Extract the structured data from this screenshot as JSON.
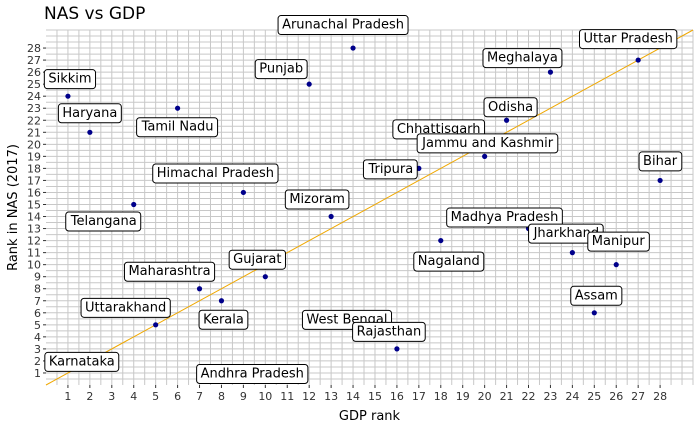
{
  "chart_data": {
    "type": "scatter",
    "title": "NAS vs GDP",
    "xlabel": "GDP rank",
    "ylabel": "Rank in NAS (2017)",
    "xlim": [
      0,
      29.5
    ],
    "ylim": [
      0,
      29.5
    ],
    "x_ticks": [
      "1",
      "2",
      "3",
      "4",
      "5",
      "6",
      "7",
      "8",
      "9",
      "10",
      "11",
      "12",
      "13",
      "14",
      "15",
      "16",
      "17",
      "18",
      "19",
      "20",
      "21",
      "22",
      "23",
      "24",
      "25",
      "26",
      "27",
      "28"
    ],
    "y_ticks": [
      "1",
      "2",
      "3",
      "4",
      "5",
      "6",
      "7",
      "8",
      "9",
      "10",
      "11",
      "12",
      "13",
      "14",
      "15",
      "16",
      "17",
      "18",
      "19",
      "20",
      "21",
      "22",
      "23",
      "24",
      "25",
      "26",
      "27",
      "28"
    ],
    "grid": true,
    "reference_line": {
      "color": "#f0a800",
      "slope": 1,
      "intercept": 0
    },
    "point_color": "#00008b",
    "points": [
      {
        "state": "Sikkim",
        "x": 1,
        "y": 24
      },
      {
        "state": "Haryana",
        "x": 2,
        "y": 21
      },
      {
        "state": "Karnataka",
        "x": 3,
        "y": 2
      },
      {
        "state": "Telangana",
        "x": 4,
        "y": 15
      },
      {
        "state": "Uttarakhand",
        "x": 5,
        "y": 5
      },
      {
        "state": "Tamil Nadu",
        "x": 6,
        "y": 23
      },
      {
        "state": "Maharashtra",
        "x": 7,
        "y": 8
      },
      {
        "state": "Kerala",
        "x": 8,
        "y": 7
      },
      {
        "state": "Himachal Pradesh",
        "x": 9,
        "y": 16
      },
      {
        "state": "Gujarat",
        "x": 10,
        "y": 9
      },
      {
        "state": "Andhra Pradesh",
        "x": 11,
        "y": 1
      },
      {
        "state": "Punjab",
        "x": 12,
        "y": 25
      },
      {
        "state": "Mizoram",
        "x": 13,
        "y": 14
      },
      {
        "state": "Arunachal Pradesh",
        "x": 14,
        "y": 28
      },
      {
        "state": "West Bengal",
        "x": 15,
        "y": 4
      },
      {
        "state": "Rajasthan",
        "x": 16,
        "y": 3
      },
      {
        "state": "Tripura",
        "x": 17,
        "y": 18
      },
      {
        "state": "Nagaland",
        "x": 18,
        "y": 12
      },
      {
        "state": "Chhattisgarh",
        "x": 19,
        "y": 20
      },
      {
        "state": "Jammu and Kashmir",
        "x": 20,
        "y": 19
      },
      {
        "state": "Odisha",
        "x": 21,
        "y": 22
      },
      {
        "state": "Madhya Pradesh",
        "x": 22,
        "y": 13
      },
      {
        "state": "Meghalaya",
        "x": 23,
        "y": 26
      },
      {
        "state": "Jharkhand",
        "x": 24,
        "y": 11
      },
      {
        "state": "Assam",
        "x": 25,
        "y": 6
      },
      {
        "state": "Manipur",
        "x": 26,
        "y": 10
      },
      {
        "state": "Uttar Pradesh",
        "x": 27,
        "y": 27
      },
      {
        "state": "Bihar",
        "x": 28,
        "y": 17
      }
    ]
  }
}
